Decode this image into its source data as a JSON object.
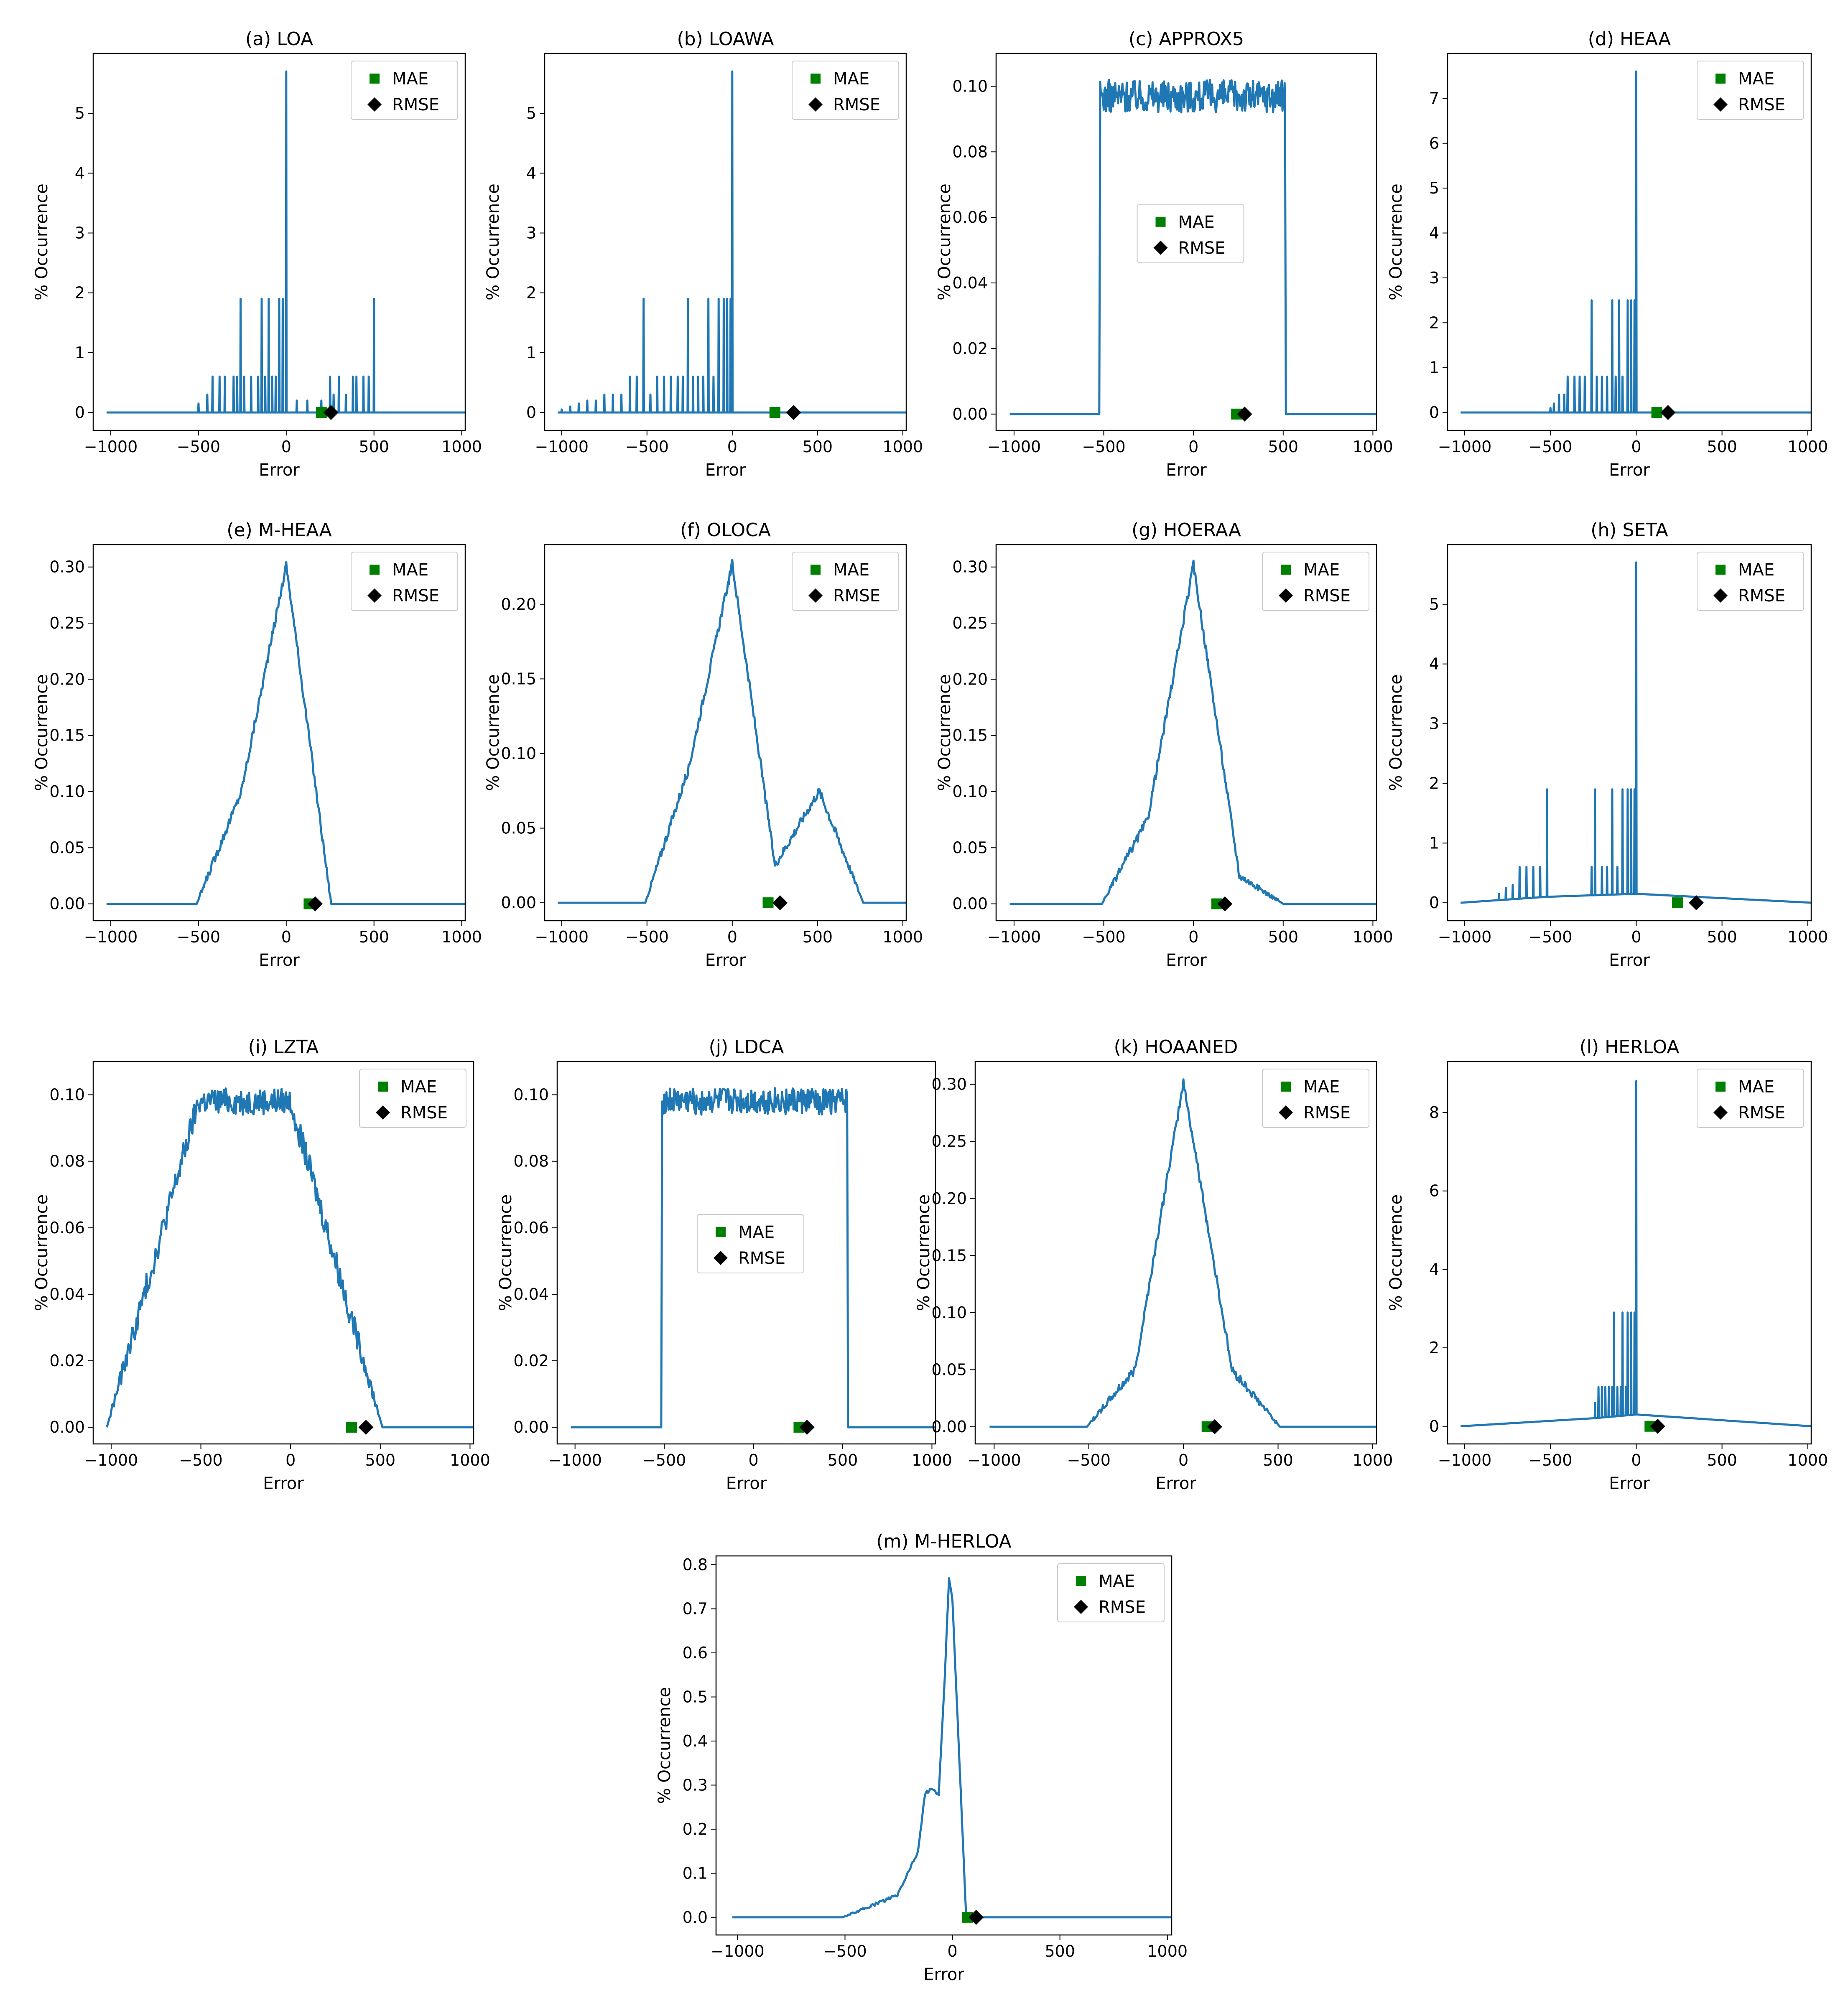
{
  "figure": {
    "x_axis_label": "Error",
    "y_axis_label": "% Occurrence",
    "x_ticks": [
      "−1000",
      "−500",
      "0",
      "500",
      "1000"
    ],
    "legend": {
      "mae_label": "MAE",
      "rmse_label": "RMSE"
    },
    "colors": {
      "line": "#1f77b4",
      "mae": "#008000",
      "rmse": "#000000"
    },
    "icons": {
      "mae_marker": "green-square-marker",
      "rmse_marker": "black-diamond-marker"
    }
  },
  "chart_data": [
    {
      "id": "a",
      "title": "(a) LOA",
      "type": "line",
      "shape": "spikes",
      "xlim": [
        -1100,
        1020
      ],
      "ylim": [
        -0.3,
        6.0
      ],
      "yticks": [
        "0",
        "1",
        "2",
        "3",
        "4",
        "5"
      ],
      "ytick_values": [
        0,
        1,
        2,
        3,
        4,
        5
      ],
      "legend_position": "upper-right",
      "mae": 200,
      "rmse": 255,
      "spikes": [
        [
          -500,
          0.15
        ],
        [
          -450,
          0.3
        ],
        [
          -420,
          0.6
        ],
        [
          -380,
          0.6
        ],
        [
          -350,
          0.6
        ],
        [
          -300,
          0.6
        ],
        [
          -280,
          0.6
        ],
        [
          -260,
          1.9
        ],
        [
          -240,
          0.6
        ],
        [
          -200,
          0.6
        ],
        [
          -160,
          0.6
        ],
        [
          -140,
          1.9
        ],
        [
          -120,
          0.6
        ],
        [
          -100,
          1.9
        ],
        [
          -80,
          0.6
        ],
        [
          -60,
          0.6
        ],
        [
          -40,
          1.9
        ],
        [
          -20,
          1.9
        ],
        [
          0,
          5.7
        ],
        [
          60,
          0.2
        ],
        [
          120,
          0.2
        ],
        [
          200,
          0.2
        ],
        [
          250,
          0.6
        ],
        [
          270,
          0.3
        ],
        [
          300,
          0.6
        ],
        [
          340,
          0.3
        ],
        [
          380,
          0.6
        ],
        [
          400,
          0.6
        ],
        [
          440,
          0.6
        ],
        [
          470,
          0.6
        ],
        [
          500,
          1.9
        ]
      ]
    },
    {
      "id": "b",
      "title": "(b) LOAWA",
      "type": "line",
      "shape": "spikes",
      "xlim": [
        -1100,
        1020
      ],
      "ylim": [
        -0.3,
        6.0
      ],
      "yticks": [
        "0",
        "1",
        "2",
        "3",
        "4",
        "5"
      ],
      "ytick_values": [
        0,
        1,
        2,
        3,
        4,
        5
      ],
      "legend_position": "upper-right",
      "mae": 250,
      "rmse": 360,
      "spikes": [
        [
          -1000,
          0.05
        ],
        [
          -950,
          0.1
        ],
        [
          -900,
          0.15
        ],
        [
          -850,
          0.2
        ],
        [
          -800,
          0.2
        ],
        [
          -750,
          0.3
        ],
        [
          -700,
          0.3
        ],
        [
          -650,
          0.3
        ],
        [
          -600,
          0.6
        ],
        [
          -560,
          0.6
        ],
        [
          -520,
          1.9
        ],
        [
          -480,
          0.3
        ],
        [
          -440,
          0.6
        ],
        [
          -400,
          0.6
        ],
        [
          -360,
          0.6
        ],
        [
          -320,
          0.6
        ],
        [
          -290,
          0.6
        ],
        [
          -260,
          1.9
        ],
        [
          -230,
          0.6
        ],
        [
          -200,
          0.6
        ],
        [
          -170,
          0.6
        ],
        [
          -140,
          1.9
        ],
        [
          -110,
          0.6
        ],
        [
          -80,
          1.9
        ],
        [
          -50,
          1.9
        ],
        [
          -30,
          1.9
        ],
        [
          -10,
          1.9
        ],
        [
          0,
          5.7
        ]
      ]
    },
    {
      "id": "c",
      "title": "(c) APPROX5",
      "type": "line",
      "shape": "plateau",
      "xlim": [
        -1100,
        1020
      ],
      "ylim": [
        -0.005,
        0.11
      ],
      "yticks": [
        "0.00",
        "0.02",
        "0.04",
        "0.06",
        "0.08",
        "0.10"
      ],
      "ytick_values": [
        0,
        0.02,
        0.04,
        0.06,
        0.08,
        0.1
      ],
      "legend_position": "center",
      "mae": 240,
      "rmse": 285,
      "plateau": {
        "from": -520,
        "to": 510,
        "level": 0.097,
        "noise": 0.005
      }
    },
    {
      "id": "d",
      "title": "(d) HEAA",
      "type": "line",
      "shape": "spikes",
      "xlim": [
        -1100,
        1020
      ],
      "ylim": [
        -0.4,
        8.0
      ],
      "yticks": [
        "0",
        "1",
        "2",
        "3",
        "4",
        "5",
        "6",
        "7"
      ],
      "ytick_values": [
        0,
        1,
        2,
        3,
        4,
        5,
        6,
        7
      ],
      "legend_position": "upper-right",
      "mae": 120,
      "rmse": 185,
      "spikes": [
        [
          -500,
          0.1
        ],
        [
          -480,
          0.2
        ],
        [
          -450,
          0.4
        ],
        [
          -420,
          0.4
        ],
        [
          -400,
          0.8
        ],
        [
          -360,
          0.8
        ],
        [
          -330,
          0.8
        ],
        [
          -300,
          0.8
        ],
        [
          -260,
          2.5
        ],
        [
          -230,
          0.8
        ],
        [
          -200,
          0.8
        ],
        [
          -170,
          0.8
        ],
        [
          -140,
          2.5
        ],
        [
          -120,
          0.8
        ],
        [
          -100,
          2.5
        ],
        [
          -80,
          0.8
        ],
        [
          -50,
          2.5
        ],
        [
          -30,
          2.5
        ],
        [
          -10,
          2.5
        ],
        [
          0,
          7.6
        ]
      ]
    },
    {
      "id": "e",
      "title": "(e) M-HEAA",
      "type": "line",
      "shape": "polyline",
      "xlim": [
        -1100,
        1020
      ],
      "ylim": [
        -0.015,
        0.32
      ],
      "yticks": [
        "0.00",
        "0.05",
        "0.10",
        "0.15",
        "0.20",
        "0.25",
        "0.30"
      ],
      "ytick_values": [
        0,
        0.05,
        0.1,
        0.15,
        0.2,
        0.25,
        0.3
      ],
      "legend_position": "upper-right",
      "mae": 130,
      "rmse": 165,
      "noise": 0.004,
      "points": [
        [
          -1024,
          0
        ],
        [
          -510,
          0
        ],
        [
          -256,
          0.1
        ],
        [
          0,
          0.302
        ],
        [
          256,
          0
        ],
        [
          1024,
          0
        ]
      ]
    },
    {
      "id": "f",
      "title": "(f) OLOCA",
      "type": "line",
      "shape": "polyline",
      "xlim": [
        -1100,
        1020
      ],
      "ylim": [
        -0.012,
        0.24
      ],
      "yticks": [
        "0.00",
        "0.05",
        "0.10",
        "0.15",
        "0.20"
      ],
      "ytick_values": [
        0,
        0.05,
        0.1,
        0.15,
        0.2
      ],
      "legend_position": "upper-right",
      "mae": 210,
      "rmse": 280,
      "noise": 0.003,
      "points": [
        [
          -1024,
          0
        ],
        [
          -510,
          0
        ],
        [
          -256,
          0.09
        ],
        [
          0,
          0.227
        ],
        [
          250,
          0.025
        ],
        [
          510,
          0.075
        ],
        [
          768,
          0
        ],
        [
          1024,
          0
        ]
      ]
    },
    {
      "id": "g",
      "title": "(g) HOERAA",
      "type": "line",
      "shape": "polyline",
      "xlim": [
        -1100,
        1020
      ],
      "ylim": [
        -0.015,
        0.32
      ],
      "yticks": [
        "0.00",
        "0.05",
        "0.10",
        "0.15",
        "0.20",
        "0.25",
        "0.30"
      ],
      "ytick_values": [
        0,
        0.05,
        0.1,
        0.15,
        0.2,
        0.25,
        0.3
      ],
      "legend_position": "upper-right",
      "mae": 130,
      "rmse": 175,
      "noise": 0.004,
      "points": [
        [
          -1024,
          0
        ],
        [
          -510,
          0
        ],
        [
          -256,
          0.075
        ],
        [
          0,
          0.302
        ],
        [
          256,
          0.025
        ],
        [
          500,
          0
        ],
        [
          1024,
          0
        ]
      ]
    },
    {
      "id": "h",
      "title": "(h) SETA",
      "type": "line",
      "shape": "spikes",
      "xlim": [
        -1100,
        1020
      ],
      "ylim": [
        -0.3,
        6.0
      ],
      "yticks": [
        "0",
        "1",
        "2",
        "3",
        "4",
        "5"
      ],
      "ytick_values": [
        0,
        1,
        2,
        3,
        4,
        5
      ],
      "legend_position": "upper-right",
      "mae": 240,
      "rmse": 350,
      "base": [
        [
          -1024,
          0
        ],
        [
          -520,
          0.1
        ],
        [
          0,
          0.15
        ],
        [
          1024,
          0
        ]
      ],
      "spikes": [
        [
          -800,
          0.15
        ],
        [
          -760,
          0.25
        ],
        [
          -720,
          0.3
        ],
        [
          -680,
          0.6
        ],
        [
          -640,
          0.6
        ],
        [
          -600,
          0.6
        ],
        [
          -560,
          0.6
        ],
        [
          -520,
          1.9
        ],
        [
          -260,
          0.6
        ],
        [
          -240,
          1.9
        ],
        [
          -200,
          0.6
        ],
        [
          -170,
          0.6
        ],
        [
          -140,
          1.9
        ],
        [
          -110,
          0.6
        ],
        [
          -80,
          1.9
        ],
        [
          -50,
          1.9
        ],
        [
          -30,
          1.9
        ],
        [
          -10,
          1.9
        ],
        [
          0,
          5.7
        ]
      ]
    },
    {
      "id": "i",
      "title": "(i) LZTA",
      "type": "line",
      "shape": "polyline",
      "xlim": [
        -1100,
        1020
      ],
      "ylim": [
        -0.005,
        0.11
      ],
      "yticks": [
        "0.00",
        "0.02",
        "0.04",
        "0.06",
        "0.08",
        "0.10"
      ],
      "ytick_values": [
        0,
        0.02,
        0.04,
        0.06,
        0.08,
        0.1
      ],
      "legend_position": "upper-right",
      "mae": 340,
      "rmse": 420,
      "noise": 0.004,
      "points": [
        [
          -1024,
          0
        ],
        [
          -512,
          0.098
        ],
        [
          0,
          0.098
        ],
        [
          512,
          0
        ],
        [
          1024,
          0
        ]
      ]
    },
    {
      "id": "j",
      "title": "(j) LDCA",
      "type": "line",
      "shape": "plateau",
      "xlim": [
        -1100,
        1020
      ],
      "ylim": [
        -0.005,
        0.11
      ],
      "yticks": [
        "0.00",
        "0.02",
        "0.04",
        "0.06",
        "0.08",
        "0.10"
      ],
      "ytick_values": [
        0,
        0.02,
        0.04,
        0.06,
        0.08,
        0.1
      ],
      "legend_position": "center",
      "mae": 255,
      "rmse": 300,
      "plateau": {
        "from": -512,
        "to": 525,
        "level": 0.098,
        "noise": 0.004
      }
    },
    {
      "id": "k",
      "title": "(k) HOAANED",
      "type": "line",
      "shape": "polyline",
      "xlim": [
        -1100,
        1020
      ],
      "ylim": [
        -0.015,
        0.32
      ],
      "yticks": [
        "0.00",
        "0.05",
        "0.10",
        "0.15",
        "0.20",
        "0.25",
        "0.30"
      ],
      "ytick_values": [
        0,
        0.05,
        0.1,
        0.15,
        0.2,
        0.25,
        0.3
      ],
      "legend_position": "upper-right",
      "mae": 125,
      "rmse": 165,
      "noise": 0.004,
      "points": [
        [
          -1024,
          0
        ],
        [
          -510,
          0
        ],
        [
          -256,
          0.05
        ],
        [
          0,
          0.302
        ],
        [
          256,
          0.05
        ],
        [
          510,
          0
        ],
        [
          1024,
          0
        ]
      ]
    },
    {
      "id": "l",
      "title": "(l) HERLOA",
      "type": "line",
      "shape": "spikes",
      "xlim": [
        -1100,
        1020
      ],
      "ylim": [
        -0.45,
        9.3
      ],
      "yticks": [
        "0",
        "2",
        "4",
        "6",
        "8"
      ],
      "ytick_values": [
        0,
        2,
        4,
        6,
        8
      ],
      "legend_position": "upper-right",
      "mae": 80,
      "rmse": 125,
      "base": [
        [
          -1024,
          0
        ],
        [
          -512,
          0.05
        ],
        [
          -256,
          0.2
        ],
        [
          0,
          0.3
        ],
        [
          1024,
          0
        ]
      ],
      "spikes": [
        [
          -240,
          0.6
        ],
        [
          -220,
          1.0
        ],
        [
          -200,
          1.0
        ],
        [
          -180,
          1.0
        ],
        [
          -160,
          1.0
        ],
        [
          -140,
          1.0
        ],
        [
          -130,
          2.9
        ],
        [
          -110,
          1.0
        ],
        [
          -90,
          1.0
        ],
        [
          -80,
          2.9
        ],
        [
          -60,
          1.0
        ],
        [
          -50,
          2.9
        ],
        [
          -30,
          2.9
        ],
        [
          -10,
          2.9
        ],
        [
          0,
          8.8
        ]
      ]
    },
    {
      "id": "m",
      "title": "(m) M-HERLOA",
      "type": "line",
      "shape": "polyline",
      "xlim": [
        -1100,
        1020
      ],
      "ylim": [
        -0.04,
        0.82
      ],
      "yticks": [
        "0.0",
        "0.1",
        "0.2",
        "0.3",
        "0.4",
        "0.5",
        "0.6",
        "0.7",
        "0.8"
      ],
      "ytick_values": [
        0,
        0.1,
        0.2,
        0.3,
        0.4,
        0.5,
        0.6,
        0.7,
        0.8
      ],
      "legend_position": "upper-right",
      "mae": 70,
      "rmse": 110,
      "noise": 0.004,
      "points": [
        [
          -1024,
          0
        ],
        [
          -512,
          0
        ],
        [
          -256,
          0.05
        ],
        [
          -160,
          0.15
        ],
        [
          -128,
          0.28
        ],
        [
          -100,
          0.29
        ],
        [
          -64,
          0.28
        ],
        [
          -40,
          0.5
        ],
        [
          -16,
          0.77
        ],
        [
          0,
          0.72
        ],
        [
          64,
          0
        ],
        [
          1024,
          0
        ]
      ]
    }
  ]
}
